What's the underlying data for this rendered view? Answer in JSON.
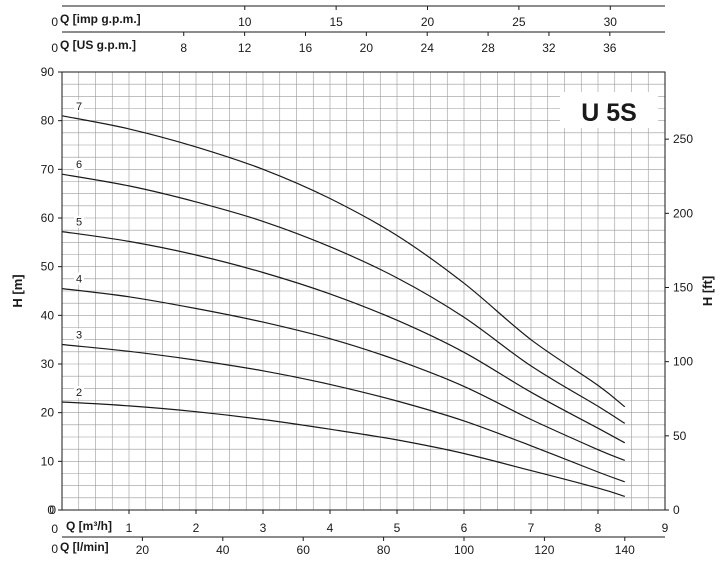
{
  "chart_data": {
    "type": "line",
    "title": "U 5S",
    "ylabel": "H [m]",
    "ylabel_right": "H [ft]",
    "grid": true,
    "xlim": [
      0,
      9
    ],
    "ylim": [
      0,
      90
    ],
    "x_axes": {
      "m3h": {
        "label": "Q [m³/h]",
        "ticks": [
          "1",
          "2",
          "3",
          "4",
          "5",
          "6",
          "7",
          "8"
        ],
        "end_tick": "9",
        "zero": "0"
      },
      "lmin": {
        "label": "Q [l/min]",
        "ticks": [
          "20",
          "40",
          "60",
          "80",
          "100",
          "120",
          "140"
        ],
        "zero": "0"
      },
      "usgpm": {
        "label": "Q [US g.p.m.]",
        "ticks": [
          "8",
          "12",
          "16",
          "20",
          "24",
          "28",
          "32",
          "36"
        ],
        "zero": "0"
      },
      "impgpm": {
        "label": "Q [imp g.p.m.]",
        "ticks": [
          "10",
          "15",
          "20",
          "25",
          "30"
        ],
        "zero": "0"
      }
    },
    "y_ticks": [
      "0",
      "10",
      "20",
      "30",
      "40",
      "50",
      "60",
      "70",
      "80",
      "90"
    ],
    "y_right_ticks": [
      "0",
      "50",
      "100",
      "150",
      "200",
      "250"
    ],
    "series": [
      {
        "name": "2",
        "x": [
          0,
          1,
          2,
          3,
          4,
          5,
          6,
          7,
          8,
          8.4
        ],
        "y": [
          22.2,
          21.4,
          20.2,
          18.6,
          16.6,
          14.4,
          11.6,
          8.1,
          4.5,
          2.8
        ]
      },
      {
        "name": "3",
        "x": [
          0,
          1,
          2,
          3,
          4,
          5,
          6,
          7,
          8,
          8.4
        ],
        "y": [
          34,
          32.6,
          30.8,
          28.6,
          25.8,
          22.4,
          18.3,
          13.2,
          7.8,
          5.8
        ]
      },
      {
        "name": "4",
        "x": [
          0,
          1,
          2,
          3,
          4,
          5,
          6,
          7,
          8,
          8.4
        ],
        "y": [
          45.5,
          43.8,
          41.4,
          38.6,
          35.2,
          30.8,
          25.4,
          18.6,
          12.4,
          10.2
        ]
      },
      {
        "name": "5",
        "x": [
          0,
          1,
          2,
          3,
          4,
          5,
          6,
          7,
          8,
          8.4
        ],
        "y": [
          57.2,
          55.2,
          52.4,
          48.8,
          44.4,
          39,
          32.4,
          24.2,
          16.8,
          13.8
        ]
      },
      {
        "name": "6",
        "x": [
          0,
          1,
          2,
          3,
          4,
          5,
          6,
          7,
          8,
          8.4
        ],
        "y": [
          69,
          66.6,
          63.3,
          59.3,
          54.1,
          47.7,
          39.6,
          29.6,
          21.3,
          17.8
        ]
      },
      {
        "name": "7",
        "x": [
          0,
          1,
          2,
          3,
          4,
          5,
          6,
          7,
          8,
          8.4
        ],
        "y": [
          81,
          78.3,
          74.6,
          70,
          64,
          56.4,
          46.6,
          35,
          25.6,
          21.2
        ]
      }
    ]
  }
}
